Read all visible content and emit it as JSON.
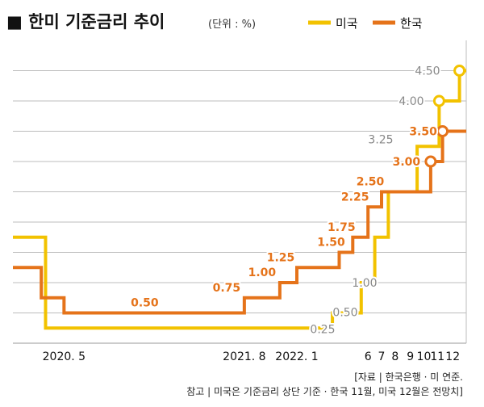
{
  "title": "■ 한미 기준금리 추이",
  "unit_note": "(단위 : %)",
  "legend": [
    {
      "label": "미국",
      "color": "#F2C200"
    },
    {
      "label": "한국",
      "color": "#E5731A"
    }
  ],
  "source_line": "[자료 | 한국은행 · 미 연준.",
  "note_line": "참고 | 미국은 기준금리 상단 기준 · 한국 11월, 미국 12월은 전망치]",
  "chart_data": {
    "type": "line",
    "step": true,
    "xlabel": "",
    "ylabel": "",
    "ylim": [
      0,
      5
    ],
    "grid": true,
    "legend_position": "top-right",
    "x_tick_labels": [
      {
        "x": 2020.36,
        "label": "2020. 5"
      },
      {
        "x": 2021.63,
        "label": "2021. 8"
      },
      {
        "x": 2022.0,
        "label": "2022. 1"
      },
      {
        "x": 2022.42,
        "label": "6"
      },
      {
        "x": 2022.5,
        "label": "7"
      },
      {
        "x": 2022.58,
        "label": "8"
      },
      {
        "x": 2022.67,
        "label": "9"
      },
      {
        "x": 2022.75,
        "label": "10"
      },
      {
        "x": 2022.83,
        "label": "11"
      },
      {
        "x": 2022.92,
        "label": "12"
      }
    ],
    "series": [
      {
        "name": "미국",
        "color": "#F2C200",
        "points": [
          {
            "x": 2020.0,
            "y": 1.75
          },
          {
            "x": 2020.23,
            "y": 0.25
          },
          {
            "x": 2022.21,
            "y": 0.5,
            "label": "0.50"
          },
          {
            "x": 2022.38,
            "y": 1.0,
            "label": "1.00"
          },
          {
            "x": 2022.46,
            "y": 1.75
          },
          {
            "x": 2022.54,
            "y": 2.5
          },
          {
            "x": 2022.71,
            "y": 3.25,
            "label": "3.25"
          },
          {
            "x": 2022.84,
            "y": 4.0,
            "label": "4.00"
          },
          {
            "x": 2022.96,
            "y": 4.5,
            "label": "4.50"
          }
        ],
        "start_label": {
          "y": 0.25,
          "label": "0.25"
        },
        "end_x": 2023.0
      },
      {
        "name": "한국",
        "color": "#E5731A",
        "points": [
          {
            "x": 2020.0,
            "y": 1.25
          },
          {
            "x": 2020.2,
            "y": 0.75
          },
          {
            "x": 2020.36,
            "y": 0.5,
            "label": "0.50"
          },
          {
            "x": 2021.63,
            "y": 0.75,
            "label": "0.75"
          },
          {
            "x": 2021.88,
            "y": 1.0,
            "label": "1.00"
          },
          {
            "x": 2022.0,
            "y": 1.25,
            "label": "1.25"
          },
          {
            "x": 2022.25,
            "y": 1.5,
            "label": "1.50"
          },
          {
            "x": 2022.33,
            "y": 1.75,
            "label": "1.75"
          },
          {
            "x": 2022.42,
            "y": 2.25,
            "label": "2.25"
          },
          {
            "x": 2022.5,
            "y": 2.5,
            "label": "2.50"
          },
          {
            "x": 2022.79,
            "y": 3.0,
            "label": "3.00"
          },
          {
            "x": 2022.86,
            "y": 3.5,
            "label": "3.50"
          }
        ],
        "end_x": 2023.0
      }
    ]
  }
}
